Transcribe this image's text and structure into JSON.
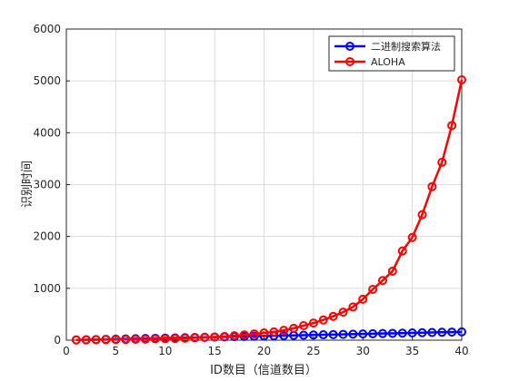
{
  "chart_data": {
    "type": "line",
    "xlabel": "ID数目（信道数目）",
    "ylabel": "识别时间",
    "x": [
      1,
      2,
      3,
      4,
      5,
      6,
      7,
      8,
      9,
      10,
      11,
      12,
      13,
      14,
      15,
      16,
      17,
      18,
      19,
      20,
      21,
      22,
      23,
      24,
      25,
      26,
      27,
      28,
      29,
      30,
      31,
      32,
      33,
      34,
      35,
      36,
      37,
      38,
      39,
      40
    ],
    "series": [
      {
        "name": "二进制搜索算法",
        "color": "#0000ff",
        "values": [
          4,
          8,
          12,
          16,
          20,
          24,
          28,
          32,
          36,
          40,
          44,
          48,
          52,
          56,
          60,
          64,
          68,
          72,
          76,
          80,
          84,
          88,
          92,
          96,
          100,
          104,
          108,
          112,
          116,
          120,
          124,
          128,
          132,
          136,
          140,
          144,
          148,
          152,
          156,
          160
        ]
      },
      {
        "name": "ALOHA",
        "color": "#ff0000",
        "values": [
          4,
          6,
          8,
          10,
          12,
          14,
          17,
          20,
          24,
          28,
          32,
          38,
          45,
          52,
          62,
          72,
          85,
          100,
          120,
          140,
          160,
          190,
          230,
          280,
          330,
          390,
          460,
          540,
          640,
          790,
          980,
          1150,
          1330,
          1720,
          1980,
          2420,
          2960,
          3430,
          4140,
          5020
        ]
      }
    ],
    "xlim": [
      0,
      40
    ],
    "xticks": [
      0,
      5,
      10,
      15,
      20,
      25,
      30,
      35,
      40
    ],
    "ylim": [
      0,
      6000
    ],
    "yticks": [
      0,
      1000,
      2000,
      3000,
      4000,
      5000,
      6000
    ],
    "grid": true,
    "legend": "upper right"
  }
}
